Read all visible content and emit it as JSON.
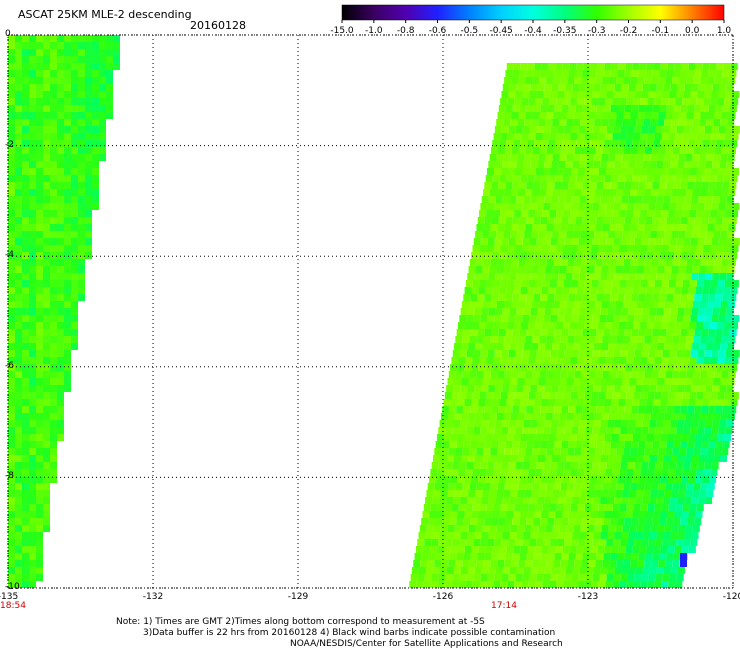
{
  "header": {
    "title": "ASCAT 25KM MLE-2 descending",
    "date": "20160128"
  },
  "colorbar": {
    "labels": [
      "-15.0",
      "-1.0",
      "-0.8",
      "-0.6",
      "-0.5",
      "-0.45",
      "-0.4",
      "-0.35",
      "-0.3",
      "-0.2",
      "-0.1",
      "0.0",
      "1.0"
    ],
    "colors": [
      "#000000",
      "#3a0060",
      "#5000b0",
      "#2020ff",
      "#0080ff",
      "#00d0ff",
      "#00ffe0",
      "#00ff80",
      "#30ff00",
      "#a0ff00",
      "#ffff00",
      "#ff8000",
      "#ff0000"
    ]
  },
  "times": {
    "left": "18:54",
    "center": "17:14"
  },
  "notes": {
    "line1": "Note: 1) Times are GMT 2)Times along bottom correspond to measurement at -5S",
    "line2": "3)Data buffer is 22 hrs from 20160128 4) Black wind barbs indicate possible contamination",
    "line3": "NOAA/NESDIS/Center for Satellite Applications and Research"
  },
  "chart_data": {
    "type": "heatmap",
    "title": "ASCAT 25KM MLE-2 descending",
    "subtitle": "20160128",
    "xlabel": "",
    "ylabel": "",
    "xlim": [
      -135,
      -120
    ],
    "ylim": [
      -10,
      0
    ],
    "x_ticks": [
      "-135",
      "-132",
      "-129",
      "-126",
      "-123",
      "-120"
    ],
    "y_ticks": [
      "0",
      "-2",
      "-4",
      "-6",
      "-8",
      "-10"
    ],
    "grid": true,
    "colorscale": "rainbow",
    "swaths": [
      {
        "name": "west",
        "x_range": [
          -135,
          -132.6
        ],
        "dominant_value": -0.3
      },
      {
        "name": "east",
        "x_range": [
          -126.7,
          -120
        ],
        "dominant_value": -0.3
      }
    ]
  }
}
